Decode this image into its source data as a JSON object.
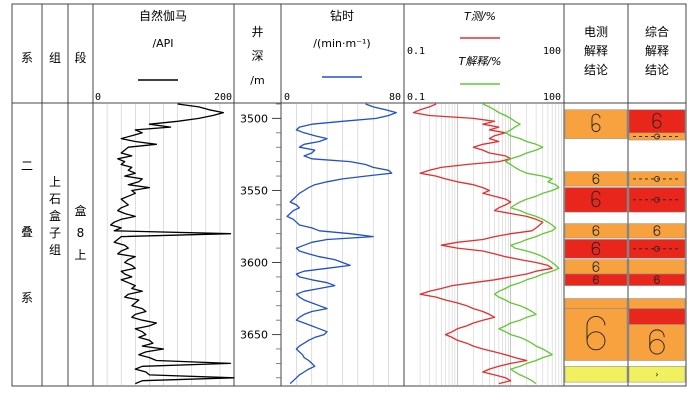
{
  "chart_data": {
    "type": "line",
    "columns": {
      "system": {
        "header": "系",
        "value": "二\n叠\n系"
      },
      "group": {
        "header": "组",
        "value": "上石盒子组"
      },
      "member": {
        "header": "段",
        "value": "盒8上"
      },
      "depth": {
        "header": [
          "井",
          "深",
          "/m"
        ],
        "ticks": [
          3500,
          3550,
          3600,
          3650
        ],
        "range": [
          3490,
          3685
        ]
      },
      "elec_interp": {
        "header": [
          "电测",
          "解释",
          "结论"
        ]
      },
      "comp_interp": {
        "header": [
          "综合",
          "解释",
          "结论"
        ]
      }
    },
    "tracks": [
      {
        "id": "gr",
        "title": "自然伽马",
        "unit": "/API",
        "range": [
          0,
          200
        ],
        "tick_labels": [
          "0",
          "200"
        ],
        "color": "#000000",
        "series": [
          {
            "depth": [
              3490,
              3492,
              3494,
              3496,
              3498,
              3500,
              3502,
              3504,
              3506,
              3508,
              3510,
              3512,
              3514,
              3516,
              3518,
              3520,
              3522,
              3524,
              3526,
              3528,
              3530,
              3532,
              3534,
              3536,
              3538,
              3540,
              3542,
              3544,
              3546,
              3548,
              3550,
              3552,
              3554,
              3556,
              3558,
              3560,
              3562,
              3564,
              3566,
              3568,
              3570,
              3572,
              3574,
              3576,
              3578,
              3580,
              3582,
              3584,
              3586,
              3588,
              3590,
              3592,
              3594,
              3596,
              3598,
              3600,
              3602,
              3604,
              3606,
              3608,
              3610,
              3612,
              3614,
              3616,
              3618,
              3620,
              3622,
              3624,
              3626,
              3628,
              3630,
              3632,
              3634,
              3636,
              3638,
              3640,
              3642,
              3644,
              3646,
              3648,
              3650,
              3652,
              3654,
              3656,
              3658,
              3660,
              3662,
              3664,
              3666,
              3668,
              3670,
              3672,
              3674,
              3676,
              3678,
              3680,
              3682,
              3684
            ],
            "values": [
              120,
              150,
              165,
              185,
              170,
              150,
              120,
              80,
              110,
              60,
              70,
              55,
              40,
              60,
              90,
              50,
              45,
              40,
              55,
              35,
              45,
              40,
              55,
              50,
              60,
              45,
              70,
              65,
              50,
              80,
              55,
              60,
              50,
              40,
              45,
              50,
              40,
              35,
              45,
              60,
              40,
              30,
              25,
              40,
              30,
              195,
              40,
              35,
              30,
              45,
              50,
              40,
              35,
              60,
              50,
              45,
              55,
              60,
              40,
              45,
              55,
              40,
              50,
              60,
              55,
              70,
              50,
              45,
              65,
              60,
              55,
              70,
              75,
              60,
              55,
              70,
              90,
              80,
              60,
              70,
              75,
              65,
              80,
              85,
              70,
              100,
              75,
              65,
              80,
              90,
              195,
              70,
              60,
              75,
              80,
              200,
              70,
              60
            ]
          }
        ]
      },
      {
        "id": "rop",
        "title": "钻时",
        "unit": "/(min·m⁻¹)",
        "range": [
          0,
          80
        ],
        "tick_labels": [
          "0",
          "80"
        ],
        "color": "#2050d0",
        "series": [
          {
            "depth": [
              3490,
              3492,
              3494,
              3496,
              3498,
              3500,
              3502,
              3504,
              3506,
              3508,
              3510,
              3512,
              3514,
              3516,
              3518,
              3520,
              3522,
              3524,
              3526,
              3528,
              3530,
              3532,
              3534,
              3536,
              3538,
              3540,
              3542,
              3544,
              3546,
              3548,
              3550,
              3552,
              3554,
              3556,
              3558,
              3560,
              3562,
              3564,
              3566,
              3568,
              3570,
              3572,
              3574,
              3576,
              3578,
              3580,
              3582,
              3584,
              3586,
              3588,
              3590,
              3592,
              3594,
              3596,
              3598,
              3600,
              3602,
              3604,
              3606,
              3608,
              3610,
              3612,
              3614,
              3616,
              3618,
              3620,
              3622,
              3624,
              3626,
              3628,
              3630,
              3632,
              3634,
              3636,
              3638,
              3640,
              3642,
              3644,
              3646,
              3648,
              3650,
              3652,
              3654,
              3656,
              3658,
              3660,
              3662,
              3664,
              3666,
              3668,
              3670,
              3672,
              3674,
              3676,
              3678,
              3680,
              3682,
              3684
            ],
            "values": [
              55,
              60,
              68,
              75,
              70,
              62,
              40,
              20,
              12,
              10,
              15,
              22,
              30,
              25,
              15,
              12,
              22,
              20,
              15,
              20,
              45,
              55,
              60,
              70,
              72,
              55,
              40,
              30,
              22,
              18,
              15,
              12,
              10,
              8,
              6,
              10,
              12,
              8,
              6,
              4,
              8,
              10,
              12,
              20,
              25,
              45,
              60,
              30,
              20,
              15,
              10,
              12,
              18,
              25,
              35,
              40,
              45,
              30,
              15,
              10,
              12,
              20,
              30,
              35,
              25,
              15,
              10,
              12,
              15,
              20,
              25,
              30,
              20,
              15,
              12,
              10,
              15,
              20,
              25,
              30,
              28,
              22,
              18,
              15,
              12,
              10,
              12,
              14,
              15,
              18,
              20,
              22,
              18,
              15,
              12,
              10,
              8,
              6
            ]
          }
        ]
      },
      {
        "id": "saturation",
        "title": [
          "T测/%",
          "T解释/%"
        ],
        "range": [
          0.1,
          100
        ],
        "scale": "log",
        "tick_labels": [
          "0.1",
          "100"
        ],
        "series": [
          {
            "name": "T测",
            "color": "#e03030",
            "depth": [
              3490,
              3492,
              3494,
              3496,
              3498,
              3500,
              3502,
              3504,
              3506,
              3508,
              3510,
              3512,
              3514,
              3516,
              3518,
              3520,
              3522,
              3524,
              3526,
              3528,
              3530,
              3532,
              3534,
              3536,
              3538,
              3540,
              3542,
              3544,
              3546,
              3548,
              3550,
              3552,
              3554,
              3556,
              3558,
              3560,
              3562,
              3564,
              3566,
              3568,
              3570,
              3572,
              3574,
              3576,
              3578,
              3580,
              3582,
              3584,
              3586,
              3588,
              3590,
              3592,
              3594,
              3596,
              3598,
              3600,
              3602,
              3604,
              3606,
              3608,
              3610,
              3612,
              3614,
              3616,
              3618,
              3620,
              3622,
              3624,
              3626,
              3628,
              3630,
              3632,
              3634,
              3636,
              3638,
              3640,
              3642,
              3644,
              3646,
              3648,
              3650,
              3652,
              3654,
              3656,
              3658,
              3660,
              3662,
              3664,
              3666,
              3668,
              3670,
              3672,
              3674,
              3676,
              3678,
              3680,
              3682,
              3684
            ],
            "values": [
              0.4,
              0.3,
              0.2,
              0.15,
              0.3,
              2,
              5,
              3,
              6,
              4,
              8,
              5,
              4,
              6,
              3,
              2,
              3,
              4,
              8,
              10,
              6,
              1.5,
              0.5,
              0.3,
              0.2,
              0.4,
              0.6,
              1,
              2,
              3,
              4,
              3,
              5,
              8,
              10,
              8,
              6,
              5,
              10,
              20,
              30,
              40,
              35,
              30,
              25,
              10,
              5,
              3,
              1,
              0.5,
              1,
              3,
              5,
              8,
              15,
              30,
              50,
              60,
              30,
              20,
              10,
              5,
              2,
              0.8,
              0.5,
              0.3,
              0.2,
              0.4,
              0.6,
              1,
              1.5,
              2,
              3,
              4,
              5,
              3,
              2,
              1.5,
              1,
              0.8,
              0.6,
              0.8,
              1,
              1.5,
              2,
              3,
              5,
              8,
              12,
              20,
              10,
              6,
              4,
              3,
              5,
              8,
              10,
              6
            ]
          },
          {
            "name": "T解释",
            "color": "#60c830",
            "depth": [
              3490,
              3492,
              3494,
              3496,
              3498,
              3500,
              3502,
              3504,
              3506,
              3508,
              3510,
              3512,
              3514,
              3516,
              3518,
              3520,
              3522,
              3524,
              3526,
              3528,
              3530,
              3532,
              3534,
              3536,
              3538,
              3540,
              3542,
              3544,
              3546,
              3548,
              3550,
              3552,
              3554,
              3556,
              3558,
              3560,
              3562,
              3564,
              3566,
              3568,
              3570,
              3572,
              3574,
              3576,
              3578,
              3580,
              3582,
              3584,
              3586,
              3588,
              3590,
              3592,
              3594,
              3596,
              3598,
              3600,
              3602,
              3604,
              3606,
              3608,
              3610,
              3612,
              3614,
              3616,
              3618,
              3620,
              3622,
              3624,
              3626,
              3628,
              3630,
              3632,
              3634,
              3636,
              3638,
              3640,
              3642,
              3644,
              3646,
              3648,
              3650,
              3652,
              3654,
              3656,
              3658,
              3660,
              3662,
              3664,
              3666,
              3668,
              3670,
              3672,
              3674,
              3676,
              3678,
              3680,
              3682,
              3684
            ],
            "values": [
              3,
              4,
              5,
              6,
              8,
              10,
              12,
              15,
              12,
              10,
              8,
              10,
              15,
              20,
              30,
              40,
              30,
              20,
              15,
              10,
              8,
              10,
              12,
              15,
              20,
              40,
              60,
              50,
              70,
              80,
              60,
              40,
              30,
              20,
              15,
              12,
              10,
              15,
              20,
              30,
              40,
              50,
              60,
              70,
              60,
              40,
              30,
              20,
              15,
              10,
              12,
              20,
              30,
              40,
              50,
              60,
              70,
              80,
              60,
              40,
              30,
              20,
              15,
              10,
              8,
              6,
              5,
              6,
              8,
              10,
              15,
              20,
              25,
              30,
              20,
              15,
              10,
              8,
              6,
              8,
              10,
              15,
              20,
              25,
              30,
              40,
              50,
              60,
              40,
              30,
              20,
              15,
              10,
              12,
              15,
              20,
              25,
              30
            ]
          }
        ]
      }
    ],
    "interp_zones": {
      "elec": [
        {
          "top": 3494,
          "bottom": 3514,
          "color": "#f7a23e",
          "symbol": "gas-oil"
        },
        {
          "top": 3537,
          "bottom": 3547,
          "color": "#f7a23e",
          "symbol": "gas-oil"
        },
        {
          "top": 3548,
          "bottom": 3565,
          "color": "#e8261c",
          "symbol": "gas-oil"
        },
        {
          "top": 3573,
          "bottom": 3583,
          "color": "#f7a23e",
          "symbol": "gas-oil"
        },
        {
          "top": 3584,
          "bottom": 3597,
          "color": "#e8261c",
          "symbol": "gas-oil"
        },
        {
          "top": 3598,
          "bottom": 3608,
          "color": "#f7a23e",
          "symbol": "gas-oil"
        },
        {
          "top": 3608,
          "bottom": 3616,
          "color": "#e8261c",
          "symbol": "gas-oil"
        },
        {
          "top": 3625,
          "bottom": 3632,
          "color": "#f7a23e",
          "symbol": "none"
        },
        {
          "top": 3632,
          "bottom": 3668,
          "color": "#f7a23e",
          "symbol": "gas-oil-large"
        },
        {
          "top": 3672,
          "bottom": 3683,
          "color": "#f0f060",
          "symbol": "none"
        }
      ],
      "comp": [
        {
          "top": 3494,
          "bottom": 3510,
          "color": "#e8261c",
          "symbol": "gas-oil"
        },
        {
          "top": 3510,
          "bottom": 3515,
          "color": "#f7a23e",
          "symbol": "dashed"
        },
        {
          "top": 3537,
          "bottom": 3547,
          "color": "#f7a23e",
          "symbol": "dashed"
        },
        {
          "top": 3548,
          "bottom": 3565,
          "color": "#e8261c",
          "symbol": "dashed"
        },
        {
          "top": 3573,
          "bottom": 3583,
          "color": "#f7a23e",
          "symbol": "gas-oil"
        },
        {
          "top": 3584,
          "bottom": 3597,
          "color": "#e8261c",
          "symbol": "dashed"
        },
        {
          "top": 3598,
          "bottom": 3608,
          "color": "#f7a23e",
          "symbol": "none"
        },
        {
          "top": 3608,
          "bottom": 3616,
          "color": "#e8261c",
          "symbol": "gas-oil"
        },
        {
          "top": 3625,
          "bottom": 3632,
          "color": "#f7a23e",
          "symbol": "none"
        },
        {
          "top": 3632,
          "bottom": 3643,
          "color": "#e8261c",
          "symbol": "none"
        },
        {
          "top": 3643,
          "bottom": 3668,
          "color": "#f7a23e",
          "symbol": "gas-oil-large"
        },
        {
          "top": 3672,
          "bottom": 3683,
          "color": "#f0f060",
          "symbol": "arrow"
        }
      ]
    }
  }
}
